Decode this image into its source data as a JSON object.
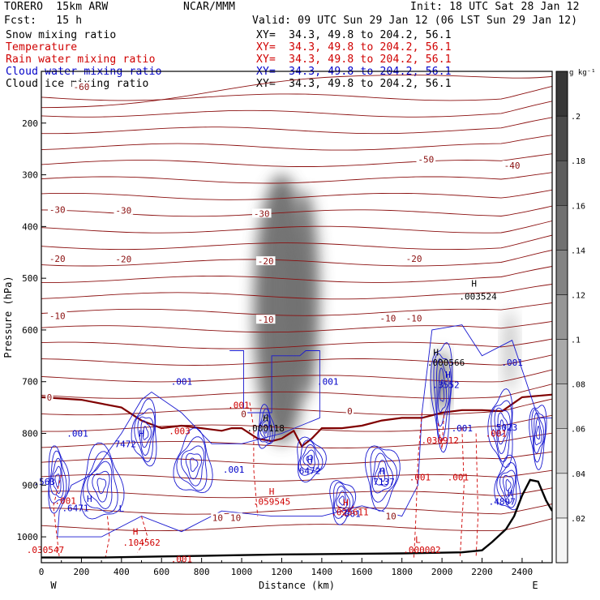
{
  "header": {
    "model": "TORERO  15km ARW",
    "center": "NCAR/MMM",
    "init": "Init: 18 UTC Sat 28 Jan 12",
    "fcst": "Fcst:   15 h",
    "valid": "Valid: 09 UTC Sun 29 Jan 12 (06 LST Sun 29 Jan 12)"
  },
  "fields": [
    {
      "name": "Snow mixing ratio",
      "xy": "XY=  34.3, 49.8 to 204.2, 56.1",
      "color": "#000000"
    },
    {
      "name": "Temperature",
      "xy": "XY=  34.3, 49.8 to 204.2, 56.1",
      "color": "#d00000"
    },
    {
      "name": "Rain water mixing ratio",
      "xy": "XY=  34.3, 49.8 to 204.2, 56.1",
      "color": "#d00000"
    },
    {
      "name": "Cloud water mixing ratio",
      "xy": "XY=  34.3, 49.8 to 204.2, 56.1",
      "color": "#0000c8"
    },
    {
      "name": "Cloud ice mixing ratio",
      "xy": "XY=  34.3, 49.8 to 204.2, 56.1",
      "color": "#000000"
    }
  ],
  "chart_data": {
    "type": "contour cross-section",
    "xlabel": "Distance (km)",
    "ylabel": "Pressure (hPa)",
    "xlim": [
      0,
      2550
    ],
    "ylim": [
      1050,
      100
    ],
    "x_ticks": [
      0,
      200,
      400,
      600,
      800,
      1000,
      1200,
      1400,
      1600,
      1800,
      2000,
      2200,
      2400
    ],
    "y_ticks": [
      200,
      300,
      400,
      500,
      600,
      700,
      800,
      900,
      1000
    ],
    "x_end_labels": {
      "left": "W",
      "right": "E"
    },
    "colorbar": {
      "unit": "g kg⁻¹",
      "ticks": [
        ".02",
        ".04",
        ".06",
        ".08",
        ".1",
        ".12",
        ".14",
        ".16",
        ".18",
        ".2"
      ],
      "levels": [
        0.0,
        0.02,
        0.04,
        0.06,
        0.08,
        0.1,
        0.12,
        0.14,
        0.16,
        0.18,
        0.2,
        0.22
      ]
    },
    "isotherm_labels": [
      {
        "text": "-60",
        "x": 200,
        "p": 130
      },
      {
        "text": "-50",
        "x": 1920,
        "p": 270
      },
      {
        "text": "-40",
        "x": 2350,
        "p": 282
      },
      {
        "text": "-30",
        "x": 80,
        "p": 367
      },
      {
        "text": "-30",
        "x": 410,
        "p": 369
      },
      {
        "text": "-30",
        "x": 1100,
        "p": 375
      },
      {
        "text": "-20",
        "x": 80,
        "p": 462
      },
      {
        "text": "-20",
        "x": 410,
        "p": 463
      },
      {
        "text": "-20",
        "x": 1120,
        "p": 467
      },
      {
        "text": "-20",
        "x": 1860,
        "p": 462
      },
      {
        "text": "-10",
        "x": 80,
        "p": 573
      },
      {
        "text": "-10",
        "x": 1120,
        "p": 580
      },
      {
        "text": "-10",
        "x": 1730,
        "p": 577
      },
      {
        "text": "-10",
        "x": 1860,
        "p": 577
      },
      {
        "text": "0",
        "x": 40,
        "p": 730
      },
      {
        "text": "0",
        "x": 1010,
        "p": 762
      },
      {
        "text": "0",
        "x": 1540,
        "p": 757
      },
      {
        "text": "10",
        "x": 880,
        "p": 963
      },
      {
        "text": "10",
        "x": 970,
        "p": 963
      },
      {
        "text": "10",
        "x": 1745,
        "p": 960
      }
    ],
    "extrema_labels": [
      {
        "text": "H",
        "x": 1120,
        "p": 770,
        "color": "#000000"
      },
      {
        "text": ".000118",
        "x": 1120,
        "p": 790,
        "color": "#000000"
      },
      {
        "text": "H",
        "x": 1970,
        "p": 643,
        "color": "#000000"
      },
      {
        "text": ".000566",
        "x": 2020,
        "p": 663,
        "color": "#000000"
      },
      {
        "text": "H",
        "x": 2160,
        "p": 510,
        "color": "#000000"
      },
      {
        "text": ".003524",
        "x": 2180,
        "p": 535,
        "color": "#000000"
      },
      {
        "text": ".001",
        "x": 700,
        "p": 700,
        "color": "#0000c8"
      },
      {
        "text": ".001",
        "x": 1430,
        "p": 700,
        "color": "#0000c8"
      },
      {
        "text": ".001",
        "x": 180,
        "p": 800,
        "color": "#0000c8"
      },
      {
        "text": ".001",
        "x": 960,
        "p": 870,
        "color": "#0000c8"
      },
      {
        "text": ".001",
        "x": 2100,
        "p": 790,
        "color": "#0000c8"
      },
      {
        "text": ".001",
        "x": 2350,
        "p": 663,
        "color": "#0000c8"
      },
      {
        "text": "H",
        "x": 500,
        "p": 800,
        "color": "#0000c8"
      },
      {
        "text": "7472",
        "x": 420,
        "p": 820,
        "color": "#0000c8"
      },
      {
        "text": "H",
        "x": 1340,
        "p": 850,
        "color": "#0000c8"
      },
      {
        "text": "6472",
        "x": 1340,
        "p": 872,
        "color": "#0000c8"
      },
      {
        "text": "H",
        "x": 1700,
        "p": 873,
        "color": "#0000c8"
      },
      {
        "text": "7137",
        "x": 1710,
        "p": 893,
        "color": "#0000c8"
      },
      {
        "text": "H",
        "x": 2030,
        "p": 686,
        "color": "#0000c8"
      },
      {
        "text": ".3552",
        "x": 2020,
        "p": 706,
        "color": "#0000c8"
      },
      {
        "text": ".5023",
        "x": 2310,
        "p": 788,
        "color": "#0000c8"
      },
      {
        "text": "H",
        "x": 2340,
        "p": 915,
        "color": "#0000c8"
      },
      {
        "text": ".4897",
        "x": 2300,
        "p": 932,
        "color": "#0000c8"
      },
      {
        "text": "H",
        "x": 240,
        "p": 926,
        "color": "#0000c8"
      },
      {
        "text": ".6471",
        "x": 170,
        "p": 944,
        "color": "#0000c8"
      },
      {
        "text": ".563",
        "x": 15,
        "p": 893,
        "color": "#0000c8"
      },
      {
        "text": ".001",
        "x": 1540,
        "p": 955,
        "color": "#0000c8"
      },
      {
        "text": ".001",
        "x": 985,
        "p": 745,
        "color": "#d00000"
      },
      {
        "text": ".003",
        "x": 690,
        "p": 795,
        "color": "#d00000"
      },
      {
        "text": "H",
        "x": 1150,
        "p": 912,
        "color": "#d00000"
      },
      {
        "text": ".059545",
        "x": 1150,
        "p": 932,
        "color": "#d00000"
      },
      {
        "text": "H",
        "x": 1520,
        "p": 933,
        "color": "#d00000"
      },
      {
        "text": ".025611",
        "x": 1540,
        "p": 952,
        "color": "#d00000"
      },
      {
        "text": ".030912",
        "x": 1990,
        "p": 813,
        "color": "#d00000"
      },
      {
        "text": ".001",
        "x": 1890,
        "p": 885,
        "color": "#d00000"
      },
      {
        "text": ".001",
        "x": 2080,
        "p": 885,
        "color": "#d00000"
      },
      {
        "text": ".001",
        "x": 2270,
        "p": 800,
        "color": "#d00000"
      },
      {
        "text": ".001",
        "x": 120,
        "p": 930,
        "color": "#d00000"
      },
      {
        "text": "H",
        "x": 470,
        "p": 990,
        "color": "#d00000"
      },
      {
        "text": ".104562",
        "x": 500,
        "p": 1011,
        "color": "#d00000"
      },
      {
        "text": ".030547",
        "x": 20,
        "p": 1025,
        "color": "#d00000"
      },
      {
        "text": ".001",
        "x": 700,
        "p": 1043,
        "color": "#d00000"
      },
      {
        "text": "L",
        "x": 1880,
        "p": 1005,
        "color": "#d00000"
      },
      {
        "text": ".000002",
        "x": 1900,
        "p": 1025,
        "color": "#d00000"
      },
      {
        "text": "L",
        "x": 400,
        "p": 945,
        "color": "#0000c8"
      }
    ],
    "terrain": [
      [
        0,
        1040
      ],
      [
        300,
        1040
      ],
      [
        600,
        1038
      ],
      [
        900,
        1036
      ],
      [
        1200,
        1034
      ],
      [
        1500,
        1033
      ],
      [
        1800,
        1032
      ],
      [
        2100,
        1030
      ],
      [
        2200,
        1026
      ],
      [
        2250,
        1010
      ],
      [
        2320,
        985
      ],
      [
        2360,
        960
      ],
      [
        2400,
        920
      ],
      [
        2440,
        890
      ],
      [
        2480,
        893
      ],
      [
        2520,
        930
      ],
      [
        2550,
        950
      ]
    ],
    "snow_shading": [
      {
        "x": 1200,
        "p": 560,
        "rx": 140,
        "rp": 260,
        "q": 0.17
      },
      {
        "x": 1310,
        "p": 530,
        "rx": 80,
        "rp": 200,
        "q": 0.15
      },
      {
        "x": 2000,
        "p": 700,
        "rx": 30,
        "rp": 60,
        "q": 0.2
      },
      {
        "x": 2340,
        "p": 640,
        "rx": 30,
        "rp": 80,
        "q": 0.08
      }
    ],
    "freezing_level": [
      [
        0,
        730
      ],
      [
        200,
        735
      ],
      [
        400,
        750
      ],
      [
        500,
        775
      ],
      [
        600,
        790
      ],
      [
        700,
        785
      ],
      [
        800,
        790
      ],
      [
        900,
        795
      ],
      [
        950,
        790
      ],
      [
        1000,
        790
      ],
      [
        1080,
        810
      ],
      [
        1150,
        815
      ],
      [
        1200,
        810
      ],
      [
        1260,
        795
      ],
      [
        1300,
        825
      ],
      [
        1350,
        810
      ],
      [
        1400,
        790
      ],
      [
        1500,
        790
      ],
      [
        1600,
        785
      ],
      [
        1700,
        775
      ],
      [
        1800,
        770
      ],
      [
        1900,
        770
      ],
      [
        2000,
        760
      ],
      [
        2100,
        755
      ],
      [
        2200,
        755
      ],
      [
        2300,
        757
      ],
      [
        2400,
        730
      ],
      [
        2550,
        725
      ]
    ]
  }
}
